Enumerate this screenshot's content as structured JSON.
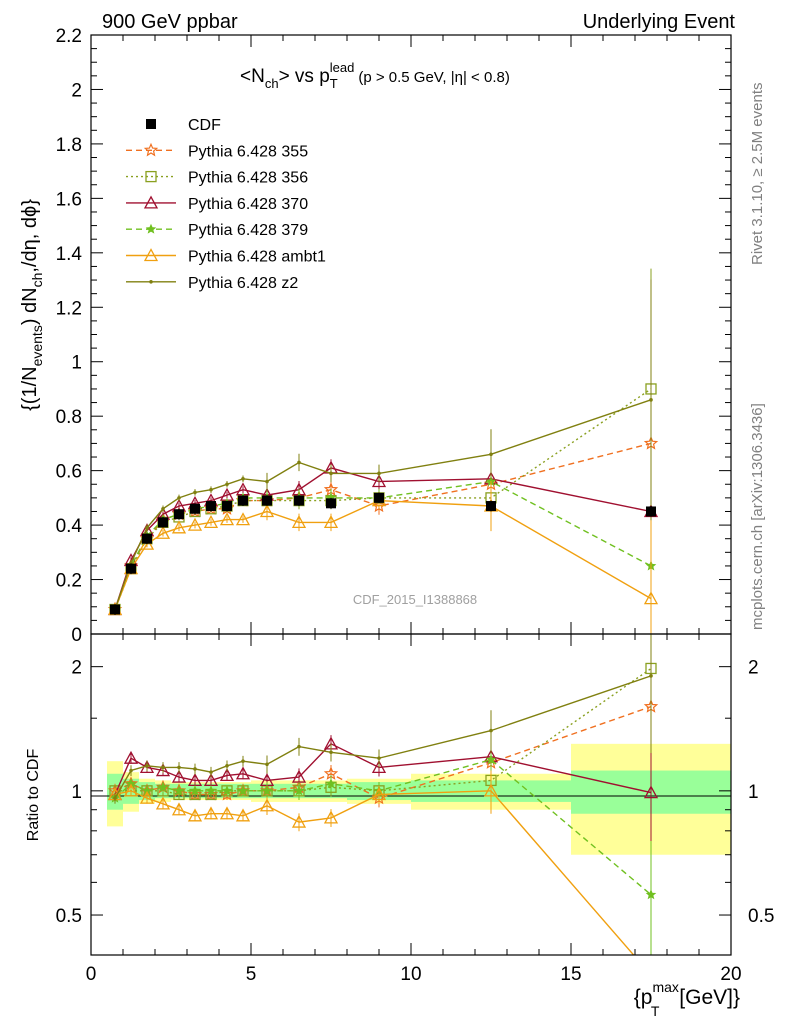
{
  "header": {
    "left": "900 GeV ppbar",
    "right": "Underlying Event"
  },
  "side_text": {
    "rivet": "Rivet 3.1.10, ≥ 2.5M events",
    "mcplots": "mcplots.cern.ch [arXiv:1306.3436]"
  },
  "watermark": "CDF_2015_I1388868",
  "chart_data": [
    {
      "type": "line",
      "title": "<N_ch> vs p_T^lead (p_T > 0.5 GeV, |η| < 0.8)",
      "title_parts": {
        "main": "<N",
        "ch": "ch",
        "vs": "> vs p",
        "T": "T",
        "lead": "lead",
        "cuts": "(p > 0.5 GeV, |η| < 0.8)"
      },
      "ylabel": "{(1/N_events) dN_ch/dη, dϕ}",
      "ylabel_parts": {
        "a": "{(1/N",
        "events": "events",
        "b": ") dN",
        "ch": "ch",
        "c": ",/dη, dϕ}"
      },
      "xlim": [
        0,
        20
      ],
      "ylim": [
        0,
        2.2
      ],
      "yticks": [
        "0",
        "0.2",
        "0.4",
        "0.6",
        "0.8",
        "1",
        "1.2",
        "1.4",
        "1.6",
        "1.8",
        "2",
        "2.2"
      ],
      "legend_position": "top-left",
      "x": [
        0.75,
        1.25,
        1.75,
        2.25,
        2.75,
        3.25,
        3.75,
        4.25,
        4.75,
        5.5,
        6.5,
        7.5,
        9.0,
        12.5,
        17.5
      ],
      "data": {
        "name": "CDF",
        "color": "#000000",
        "marker": "square",
        "values": [
          0.09,
          0.24,
          0.35,
          0.41,
          0.44,
          0.46,
          0.47,
          0.47,
          0.49,
          0.49,
          0.49,
          0.48,
          0.5,
          0.47,
          0.45
        ]
      },
      "series": [
        {
          "name": "Pythia 6.428 355",
          "color": "#f07020",
          "marker": "star",
          "dash": "6,4",
          "values": [
            0.09,
            0.25,
            0.35,
            0.42,
            0.44,
            0.45,
            0.46,
            0.46,
            0.49,
            0.49,
            0.5,
            0.53,
            0.47,
            0.55,
            0.7
          ]
        },
        {
          "name": "Pythia 6.428 356",
          "color": "#8aa020",
          "marker": "open-square",
          "dash": "2,3",
          "values": [
            0.09,
            0.24,
            0.35,
            0.41,
            0.43,
            0.45,
            0.46,
            0.47,
            0.49,
            0.49,
            0.49,
            0.49,
            0.5,
            0.5,
            0.9
          ]
        },
        {
          "name": "Pythia 6.428 370",
          "color": "#a01030",
          "marker": "open-triangle",
          "dash": "",
          "values": [
            0.09,
            0.27,
            0.38,
            0.44,
            0.47,
            0.48,
            0.49,
            0.51,
            0.53,
            0.51,
            0.53,
            0.61,
            0.56,
            0.57,
            0.45
          ]
        },
        {
          "name": "Pythia 6.428 379",
          "color": "#70c020",
          "marker": "star-small",
          "dash": "6,4",
          "values": [
            0.09,
            0.25,
            0.36,
            0.42,
            0.44,
            0.46,
            0.47,
            0.48,
            0.5,
            0.5,
            0.5,
            0.5,
            0.5,
            0.56,
            0.25
          ]
        },
        {
          "name": "Pythia 6.428 ambt1",
          "color": "#f0a010",
          "marker": "open-triangle",
          "dash": "",
          "values": [
            0.09,
            0.24,
            0.33,
            0.37,
            0.39,
            0.4,
            0.41,
            0.42,
            0.42,
            0.45,
            0.41,
            0.41,
            0.49,
            0.47,
            0.13
          ]
        },
        {
          "name": "Pythia 6.428 z2",
          "color": "#808010",
          "marker": "dot",
          "dash": "",
          "values": [
            0.09,
            0.26,
            0.39,
            0.46,
            0.5,
            0.52,
            0.53,
            0.55,
            0.57,
            0.56,
            0.63,
            0.59,
            0.59,
            0.66,
            0.86
          ]
        }
      ]
    },
    {
      "type": "line",
      "ylabel": "Ratio to CDF",
      "xlabel": "{p_T^max [GeV]}",
      "xlabel_parts": {
        "a": "{p",
        "T": "T",
        "max": "max",
        "b": " [GeV]}"
      },
      "scale": "log",
      "ylim": [
        0.4,
        2.4
      ],
      "yticks": [
        "0.5",
        "1",
        "2"
      ],
      "xticks": [
        "0",
        "5",
        "10",
        "15",
        "20"
      ],
      "xlim": [
        0,
        20
      ],
      "band_edges": [
        0.5,
        1.0,
        1.5,
        2.0,
        2.5,
        3.0,
        3.5,
        4.0,
        4.5,
        5.0,
        6.0,
        7.0,
        8.0,
        10.0,
        15.0,
        20.0
      ],
      "band_inner": [
        0.1,
        0.07,
        0.05,
        0.04,
        0.04,
        0.04,
        0.04,
        0.04,
        0.04,
        0.04,
        0.04,
        0.04,
        0.05,
        0.06,
        0.12
      ],
      "band_outer": [
        0.18,
        0.11,
        0.07,
        0.06,
        0.05,
        0.05,
        0.05,
        0.05,
        0.05,
        0.06,
        0.06,
        0.06,
        0.07,
        0.1,
        0.3
      ],
      "band_colors": {
        "outer": "#ffff99",
        "inner": "#99ff99"
      },
      "x": [
        0.75,
        1.25,
        1.75,
        2.25,
        2.75,
        3.25,
        3.75,
        4.25,
        4.75,
        5.5,
        6.5,
        7.5,
        9.0,
        12.5,
        17.5
      ],
      "series": [
        {
          "name": "Pythia 6.428 355",
          "color": "#f07020",
          "marker": "star",
          "dash": "6,4",
          "values": [
            1.0,
            1.04,
            1.0,
            1.02,
            1.0,
            0.98,
            0.98,
            0.98,
            1.0,
            1.0,
            1.02,
            1.1,
            0.96,
            1.17,
            1.6
          ]
        },
        {
          "name": "Pythia 6.428 356",
          "color": "#8aa020",
          "marker": "open-square",
          "dash": "2,3",
          "values": [
            1.0,
            1.0,
            1.0,
            1.0,
            0.98,
            0.98,
            0.98,
            1.0,
            1.0,
            1.0,
            1.0,
            1.02,
            1.0,
            1.06,
            1.98
          ]
        },
        {
          "name": "Pythia 6.428 370",
          "color": "#a01030",
          "marker": "open-triangle",
          "dash": "",
          "values": [
            0.98,
            1.2,
            1.14,
            1.12,
            1.08,
            1.06,
            1.06,
            1.09,
            1.1,
            1.06,
            1.08,
            1.3,
            1.14,
            1.21,
            0.99
          ]
        },
        {
          "name": "Pythia 6.428 379",
          "color": "#70c020",
          "marker": "star-small",
          "dash": "6,4",
          "values": [
            0.96,
            1.04,
            1.0,
            1.02,
            1.0,
            1.0,
            1.0,
            1.0,
            1.0,
            1.0,
            1.0,
            1.04,
            1.0,
            1.19,
            0.56
          ]
        },
        {
          "name": "Pythia 6.428 ambt1",
          "color": "#f0a010",
          "marker": "open-triangle",
          "dash": "",
          "values": [
            0.98,
            1.0,
            0.96,
            0.93,
            0.9,
            0.87,
            0.88,
            0.88,
            0.87,
            0.92,
            0.84,
            0.86,
            0.98,
            1.0,
            0.29
          ]
        },
        {
          "name": "Pythia 6.428 z2",
          "color": "#808010",
          "marker": "dot",
          "dash": "",
          "values": [
            0.96,
            1.12,
            1.15,
            1.14,
            1.14,
            1.13,
            1.11,
            1.15,
            1.18,
            1.16,
            1.28,
            1.24,
            1.2,
            1.4,
            1.9
          ]
        }
      ]
    }
  ]
}
